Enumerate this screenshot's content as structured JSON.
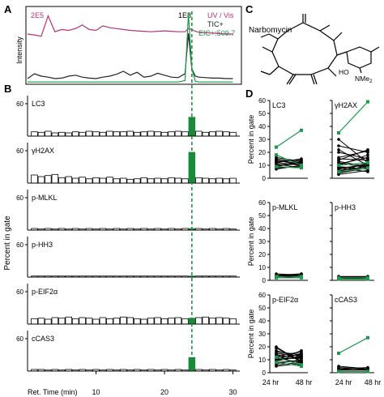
{
  "panels": {
    "A": {
      "letter": "A",
      "ylabel": "Intensity",
      "uv_scale": "2E5",
      "tic_scale": "1E8",
      "legend": [
        {
          "label": "UV / Vis",
          "color": "#b5337a"
        },
        {
          "label": "TIC+",
          "color": "#222222"
        },
        {
          "label": "EIC+:509.7",
          "color": "#1a9a4a"
        }
      ]
    },
    "B": {
      "letter": "B",
      "ylabel": "Percent in gate",
      "xlabel": "Ret. Time (min)",
      "ytick": "60"
    },
    "C": {
      "letter": "C",
      "compound": "Narbomycin",
      "nme2": "NMe",
      "nme2_sub": "2",
      "ho": "HO"
    },
    "D": {
      "letter": "D",
      "ylabel": "Percent in gate",
      "x_labels": [
        "24 hr",
        "48 hr"
      ]
    }
  },
  "colors": {
    "uv": "#b5337a",
    "tic": "#222222",
    "eic": "#1a9a4a",
    "highlight": "#1a8a3a"
  },
  "chart_data": [
    {
      "type": "line",
      "panel": "A",
      "title": "",
      "xlabel": "Ret. Time (min)",
      "x": [
        0,
        1,
        2,
        3,
        4,
        5,
        6,
        7,
        8,
        9,
        10,
        11,
        12,
        13,
        14,
        15,
        16,
        17,
        18,
        19,
        20,
        21,
        22,
        23,
        23.5,
        24,
        24.5,
        25,
        26,
        27,
        28,
        29,
        30
      ],
      "xlim": [
        0,
        31
      ],
      "series": [
        {
          "name": "UV / Vis",
          "values": [
            0.5,
            0.48,
            0.45,
            0.9,
            0.55,
            0.6,
            0.58,
            0.62,
            0.7,
            0.6,
            0.58,
            0.68,
            0.64,
            0.62,
            0.6,
            0.58,
            0.57,
            0.56,
            0.55,
            0.56,
            0.57,
            0.56,
            0.55,
            0.55,
            0.62,
            0.6,
            0.56,
            0.54,
            0.53,
            0.52,
            0.51,
            0.5,
            0.5
          ]
        },
        {
          "name": "TIC+",
          "values": [
            0.05,
            0.15,
            0.1,
            0.08,
            0.05,
            0.06,
            0.1,
            0.12,
            0.08,
            0.06,
            0.05,
            0.08,
            0.1,
            0.14,
            0.2,
            0.12,
            0.18,
            0.08,
            0.1,
            0.16,
            0.12,
            0.08,
            0.07,
            0.15,
            0.98,
            0.25,
            0.1,
            0.08,
            0.07,
            0.06,
            0.06,
            0.05,
            0.05
          ]
        },
        {
          "name": "EIC+:509.7",
          "values": [
            0.02,
            0.02,
            0.02,
            0.02,
            0.02,
            0.02,
            0.02,
            0.02,
            0.02,
            0.02,
            0.02,
            0.02,
            0.02,
            0.02,
            0.02,
            0.02,
            0.02,
            0.02,
            0.02,
            0.02,
            0.02,
            0.02,
            0.02,
            0.04,
            0.95,
            0.2,
            0.03,
            0.02,
            0.02,
            0.02,
            0.02,
            0.02,
            0.02
          ]
        }
      ]
    },
    {
      "type": "bar",
      "panel": "B",
      "xlabel": "Ret. Time (min)",
      "ylabel": "Percent in gate",
      "xlim": [
        0,
        31
      ],
      "x_ticks": [
        "10",
        "20",
        "30"
      ],
      "ylim": [
        0,
        60
      ],
      "highlight_fraction": 24,
      "bin_start": 0.5,
      "bin_width": 1.0,
      "series": [
        {
          "name": "LC3",
          "values": [
            8,
            7,
            9,
            6,
            7,
            6,
            8,
            7,
            9,
            8,
            7,
            9,
            8,
            8,
            9,
            7,
            8,
            9,
            8,
            7,
            8,
            9,
            8,
            35,
            9,
            7,
            8,
            9,
            8,
            7
          ]
        },
        {
          "name": "γH2AX",
          "values": [
            15,
            12,
            14,
            16,
            10,
            12,
            9,
            11,
            8,
            10,
            9,
            11,
            8,
            9,
            7,
            8,
            10,
            8,
            9,
            8,
            10,
            9,
            8,
            57,
            10,
            9,
            8,
            9,
            8,
            9
          ]
        },
        {
          "name": "p-MLKL",
          "values": [
            3,
            2,
            3,
            2,
            3,
            2,
            3,
            2,
            3,
            2,
            3,
            2,
            3,
            2,
            3,
            2,
            3,
            2,
            3,
            2,
            3,
            2,
            3,
            3,
            3,
            2,
            3,
            2,
            3,
            2
          ]
        },
        {
          "name": "p-HH3",
          "values": [
            2,
            2,
            2,
            2,
            2,
            2,
            2,
            2,
            2,
            2,
            2,
            2,
            2,
            2,
            2,
            2,
            2,
            2,
            2,
            2,
            2,
            2,
            2,
            2,
            2,
            2,
            2,
            2,
            2,
            2
          ]
        },
        {
          "name": "p-EIF2α",
          "values": [
            10,
            11,
            9,
            12,
            11,
            13,
            10,
            12,
            11,
            9,
            12,
            10,
            11,
            13,
            12,
            10,
            9,
            11,
            12,
            10,
            11,
            12,
            10,
            11,
            12,
            13,
            11,
            12,
            11,
            10
          ]
        },
        {
          "name": "cCAS3",
          "values": [
            3,
            3,
            2,
            3,
            2,
            3,
            2,
            3,
            2,
            3,
            2,
            3,
            2,
            3,
            2,
            3,
            2,
            3,
            2,
            3,
            2,
            3,
            2,
            25,
            3,
            2,
            3,
            2,
            3,
            2
          ]
        }
      ]
    },
    {
      "type": "line",
      "panel": "D",
      "ylabel": "Percent in gate",
      "categories": [
        "24 hr",
        "48 hr"
      ],
      "ylim": [
        0,
        60
      ],
      "y_ticks": [
        "0",
        "10",
        "20",
        "30",
        "40",
        "50",
        "60"
      ],
      "series": [
        {
          "name": "LC3",
          "lines": [
            [
              10,
              12
            ],
            [
              8,
              9
            ],
            [
              12,
              10
            ],
            [
              14,
              11
            ],
            [
              9,
              13
            ],
            [
              15,
              12
            ],
            [
              11,
              8
            ],
            [
              13,
              14
            ],
            [
              7,
              10
            ],
            [
              10,
              11
            ],
            [
              16,
              13
            ],
            [
              12,
              15
            ],
            [
              9,
              8
            ],
            [
              14,
              10
            ]
          ],
          "green": [
            [
              18,
              10
            ],
            [
              24,
              37
            ],
            [
              9,
              8
            ]
          ]
        },
        {
          "name": "γH2AX",
          "lines": [
            [
              8,
              10
            ],
            [
              5,
              12
            ],
            [
              12,
              8
            ],
            [
              15,
              14
            ],
            [
              10,
              18
            ],
            [
              20,
              15
            ],
            [
              6,
              9
            ],
            [
              9,
              7
            ],
            [
              25,
              20
            ],
            [
              30,
              12
            ],
            [
              11,
              16
            ],
            [
              7,
              11
            ],
            [
              4,
              8
            ],
            [
              16,
              21
            ],
            [
              3,
              6
            ],
            [
              14,
              22
            ],
            [
              8,
              5
            ],
            [
              22,
              10
            ],
            [
              13,
              9
            ],
            [
              4,
              10
            ]
          ],
          "green": [
            [
              35,
              59
            ],
            [
              10,
              12
            ],
            [
              5,
              8
            ]
          ]
        },
        {
          "name": "p-MLKL",
          "lines": [
            [
              2,
              3
            ],
            [
              3,
              4
            ],
            [
              4,
              5
            ],
            [
              3,
              3
            ],
            [
              5,
              4
            ],
            [
              2,
              2
            ],
            [
              3,
              5
            ],
            [
              4,
              3
            ]
          ],
          "green": [
            [
              3,
              2
            ],
            [
              2,
              3
            ]
          ]
        },
        {
          "name": "p-HH3",
          "lines": [
            [
              2,
              2
            ],
            [
              2,
              3
            ],
            [
              3,
              2
            ],
            [
              1,
              2
            ],
            [
              2,
              1
            ],
            [
              3,
              3
            ]
          ],
          "green": [
            [
              2,
              2
            ],
            [
              1,
              1
            ]
          ]
        },
        {
          "name": "p-EIF2α",
          "lines": [
            [
              10,
              12
            ],
            [
              8,
              9
            ],
            [
              12,
              14
            ],
            [
              14,
              11
            ],
            [
              9,
              15
            ],
            [
              15,
              13
            ],
            [
              11,
              8
            ],
            [
              13,
              16
            ],
            [
              7,
              10
            ],
            [
              17,
              12
            ],
            [
              6,
              8
            ],
            [
              19,
              9
            ],
            [
              12,
              6
            ],
            [
              16,
              14
            ],
            [
              5,
              7
            ],
            [
              10,
              17
            ],
            [
              9,
              13
            ],
            [
              14,
              5
            ],
            [
              11,
              11
            ],
            [
              20,
              8
            ]
          ],
          "green": [
            [
              8,
              5
            ],
            [
              12,
              6
            ]
          ]
        },
        {
          "name": "cCAS3",
          "lines": [
            [
              2,
              3
            ],
            [
              3,
              2
            ],
            [
              4,
              3
            ],
            [
              2,
              2
            ],
            [
              3,
              4
            ],
            [
              5,
              3
            ]
          ],
          "green": [
            [
              15,
              27
            ],
            [
              1,
              1
            ]
          ]
        }
      ]
    }
  ]
}
